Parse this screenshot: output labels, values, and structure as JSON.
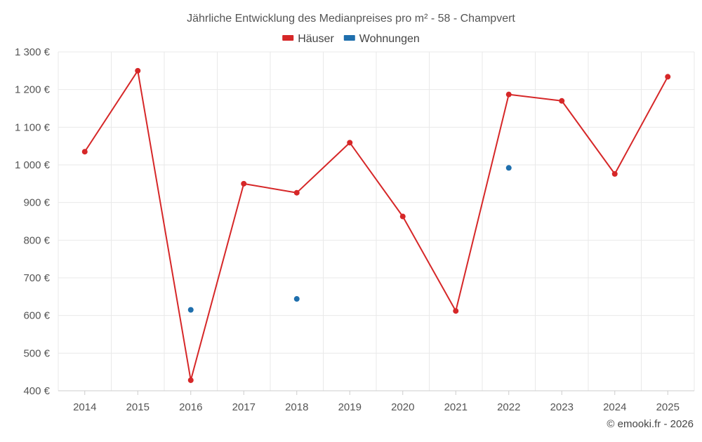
{
  "chart_data": {
    "type": "line",
    "title": "Jährliche Entwicklung des Medianpreises pro m² - 58 - Champvert",
    "legend": {
      "position": "top-center"
    },
    "x": [
      "2014",
      "2015",
      "2016",
      "2017",
      "2018",
      "2019",
      "2020",
      "2021",
      "2022",
      "2023",
      "2024",
      "2025"
    ],
    "ylim": [
      400,
      1300
    ],
    "yticks": [
      400,
      500,
      600,
      700,
      800,
      900,
      1000,
      1100,
      1200,
      1300
    ],
    "ytick_labels": [
      "400 €",
      "500 €",
      "600 €",
      "700 €",
      "800 €",
      "900 €",
      "1 000 €",
      "1 100 €",
      "1 200 €",
      "1 300 €"
    ],
    "grid": true,
    "series": [
      {
        "name": "Häuser",
        "color": "#d62728",
        "line": true,
        "values": [
          1035,
          1250,
          428,
          950,
          926,
          1059,
          863,
          612,
          1187,
          1170,
          976,
          1234
        ]
      },
      {
        "name": "Wohnungen",
        "color": "#1f6fad",
        "line": false,
        "values": [
          null,
          null,
          615,
          null,
          644,
          null,
          null,
          null,
          992,
          null,
          null,
          null
        ]
      }
    ],
    "credit": "© emooki.fr - 2026"
  }
}
